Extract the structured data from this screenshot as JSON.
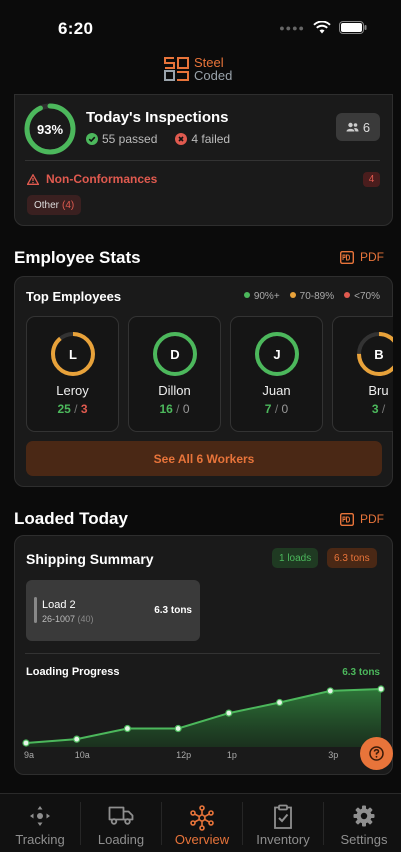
{
  "status": {
    "time": "6:20"
  },
  "brand": {
    "line1": "Steel",
    "line2": "Coded"
  },
  "inspections": {
    "percent": "93%",
    "percent_value": 93,
    "title": "Today's Inspections",
    "passed": "55 passed",
    "failed": "4 failed",
    "people_count": "6",
    "nonconf_label": "Non-Conformances",
    "nonconf_count": "4",
    "chip_label": "Other",
    "chip_count": "(4)"
  },
  "employee_stats": {
    "section_title": "Employee Stats",
    "pdf_label": "PDF",
    "card_title": "Top Employees",
    "legend": [
      "90%+",
      "70-89%",
      "<70%"
    ],
    "employees": [
      {
        "initial": "L",
        "name": "Leroy",
        "passed": "25",
        "failed": "3",
        "ring_color": "#e8a23a",
        "level": 0.89
      },
      {
        "initial": "D",
        "name": "Dillon",
        "passed": "16",
        "failed": "0",
        "ring_color": "#4cb85c",
        "level": 1.0
      },
      {
        "initial": "J",
        "name": "Juan",
        "passed": "7",
        "failed": "0",
        "ring_color": "#4cb85c",
        "level": 1.0
      },
      {
        "initial": "B",
        "name": "Bru",
        "passed": "3",
        "failed": "",
        "ring_color": "#e8a23a",
        "level": 0.75
      }
    ],
    "see_all": "See All 6 Workers"
  },
  "loaded_today": {
    "section_title": "Loaded Today",
    "pdf_label": "PDF",
    "summary_title": "Shipping Summary",
    "loads_chip": "1 loads",
    "tons_chip": "6.3 tons",
    "load": {
      "name": "Load 2",
      "id": "26-1007",
      "count": "(40)",
      "tons": "6.3 tons"
    },
    "progress_title": "Loading Progress",
    "progress_value": "6.3 tons"
  },
  "chart_data": {
    "type": "area",
    "x": [
      "9a",
      "10a",
      "11a",
      "12p",
      "1p",
      "2p",
      "3p",
      "4p"
    ],
    "tick_labels": [
      "9a",
      "10a",
      "",
      "12p",
      "1p",
      "",
      "3p",
      ""
    ],
    "values": [
      0.0,
      0.4,
      1.5,
      1.5,
      3.1,
      4.2,
      5.4,
      5.6
    ],
    "color": "#4cb85c"
  },
  "tabs": [
    {
      "label": "Tracking",
      "icon": "tracking-icon"
    },
    {
      "label": "Loading",
      "icon": "truck-icon"
    },
    {
      "label": "Overview",
      "icon": "overview-icon",
      "active": true
    },
    {
      "label": "Inventory",
      "icon": "clipboard-icon"
    },
    {
      "label": "Settings",
      "icon": "gear-icon"
    }
  ],
  "colors": {
    "accent": "#e8743a",
    "pass": "#4cb85c",
    "fail": "#e05a4f",
    "warn": "#e8a23a"
  }
}
